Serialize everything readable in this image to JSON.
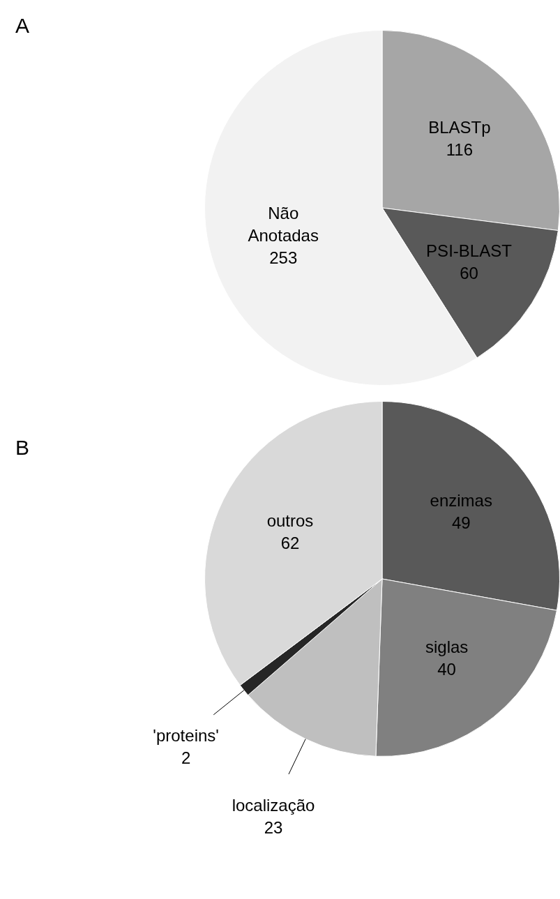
{
  "chart_data": [
    {
      "type": "pie",
      "title": "A",
      "categories": [
        "BLASTp",
        "PSI-BLAST",
        "Não Anotadas"
      ],
      "values": [
        116,
        60,
        253
      ],
      "colors": [
        "#a6a6a6",
        "#595959",
        "#f2f2f2"
      ],
      "data_labels": true
    },
    {
      "type": "pie",
      "title": "B",
      "categories": [
        "enzimas",
        "siglas",
        "localização",
        "'proteins'",
        "outros"
      ],
      "values": [
        49,
        40,
        23,
        2,
        62
      ],
      "colors": [
        "#595959",
        "#808080",
        "#bfbfbf",
        "#262626",
        "#d9d9d9"
      ],
      "data_labels": true
    }
  ]
}
